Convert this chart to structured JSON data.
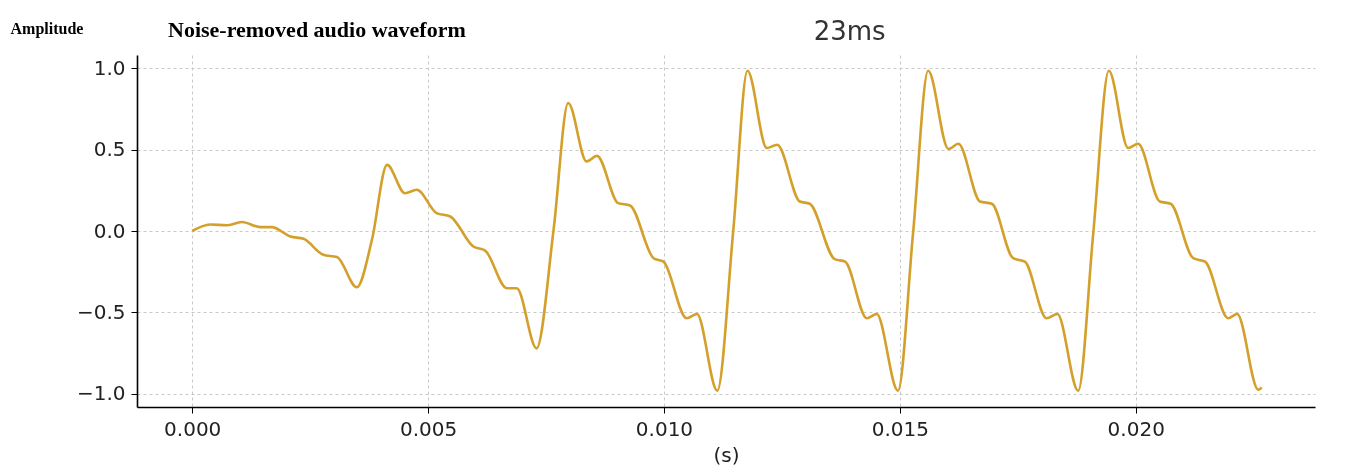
{
  "chart_data": {
    "type": "line",
    "title": "Noise-removed audio waveform",
    "xlabel": "(s)",
    "ylabel": "Amplitude",
    "annotations": [
      "23ms"
    ],
    "xlim": [
      -0.00117,
      0.0238
    ],
    "ylim": [
      -1.08,
      1.08
    ],
    "xticks": [
      {
        "value": 0,
        "label": "0.000"
      },
      0.005,
      {
        "value": 0.01,
        "label": "0.010"
      },
      0.015,
      {
        "value": 0.02,
        "label": "0.020"
      }
    ],
    "yticks": [
      {
        "value": -1,
        "label": "−1.0"
      },
      -0.5,
      {
        "value": 0,
        "label": "0.0"
      },
      0.5,
      {
        "value": 1,
        "label": "1.0"
      }
    ],
    "grid": true,
    "marker": "none",
    "line_style": "solid",
    "series": [
      {
        "color": "#d4a02c",
        "x": [
          0.0,
          0.00038,
          0.00073,
          0.00105,
          0.00144,
          0.00169,
          0.00208,
          0.00236,
          0.00278,
          0.00307,
          0.00349,
          0.00381,
          0.00413,
          0.00451,
          0.00476,
          0.00518,
          0.00547,
          0.00596,
          0.00621,
          0.00667,
          0.00688,
          0.0073,
          0.00766,
          0.00797,
          0.00836,
          0.00858,
          0.00903,
          0.00928,
          0.00978,
          0.00999,
          0.01048,
          0.0107,
          0.01113,
          0.01147,
          0.01177,
          0.01218,
          0.0124,
          0.01288,
          0.01309,
          0.01362,
          0.01384,
          0.0143,
          0.01451,
          0.01496,
          0.01528,
          0.0156,
          0.01603,
          0.01624,
          0.0167,
          0.01695,
          0.0174,
          0.01765,
          0.01811,
          0.01834,
          0.01878,
          0.0191,
          0.01943,
          0.01984,
          0.02005,
          0.02051,
          0.02074,
          0.02122,
          0.02147,
          0.02196,
          0.02215,
          0.0226,
          0.02267
        ],
        "values": [
          0.0,
          0.04,
          0.035,
          0.055,
          0.024,
          0.024,
          -0.034,
          -0.048,
          -0.146,
          -0.16,
          -0.345,
          -0.054,
          0.406,
          0.232,
          0.253,
          0.11,
          0.089,
          -0.095,
          -0.12,
          -0.351,
          -0.351,
          -0.72,
          0.007,
          0.785,
          0.427,
          0.461,
          0.171,
          0.157,
          -0.167,
          -0.188,
          -0.535,
          -0.509,
          -0.98,
          0.007,
          0.983,
          0.509,
          0.529,
          0.181,
          0.167,
          -0.173,
          -0.188,
          -0.535,
          -0.509,
          -0.98,
          -0.013,
          0.983,
          0.503,
          0.535,
          0.181,
          0.167,
          -0.167,
          -0.188,
          -0.535,
          -0.509,
          -0.98,
          -0.013,
          0.983,
          0.509,
          0.535,
          0.181,
          0.167,
          -0.167,
          -0.188,
          -0.535,
          -0.509,
          -0.975,
          -0.96
        ]
      }
    ]
  }
}
